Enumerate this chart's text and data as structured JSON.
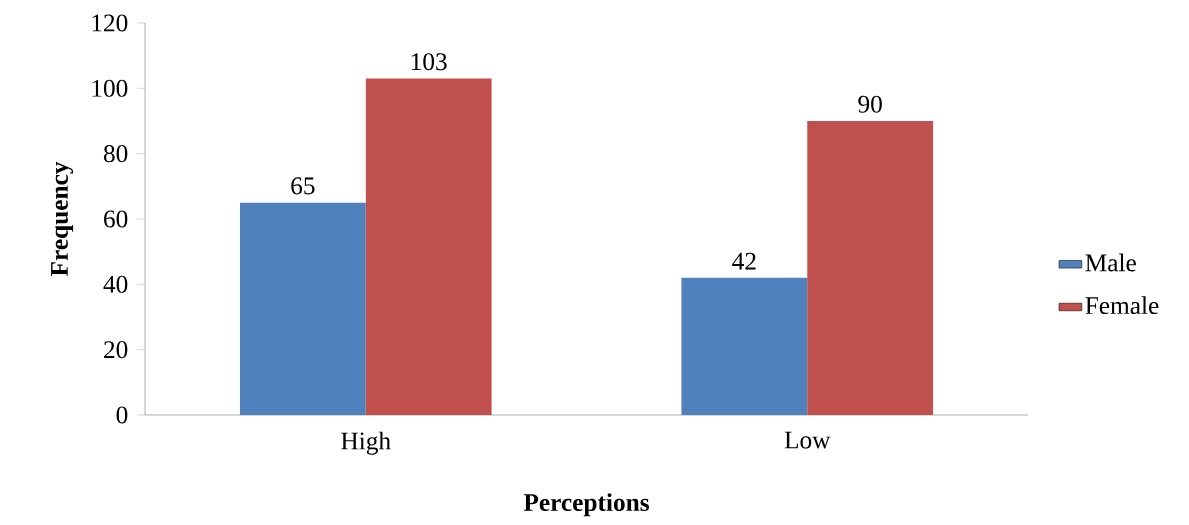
{
  "chart_data": {
    "type": "bar",
    "xlabel": "Perceptions",
    "ylabel": "Frequency",
    "categories": [
      "High",
      "Low"
    ],
    "series": [
      {
        "name": "Male",
        "color": "#4f81bd",
        "values": [
          65,
          42
        ]
      },
      {
        "name": "Female",
        "color": "#c0504d",
        "values": [
          103,
          90
        ]
      }
    ],
    "ylim": [
      0,
      120
    ],
    "yticks": [
      0,
      20,
      40,
      60,
      80,
      100,
      120
    ],
    "data_labels": true,
    "legend": "right",
    "grid": false
  }
}
